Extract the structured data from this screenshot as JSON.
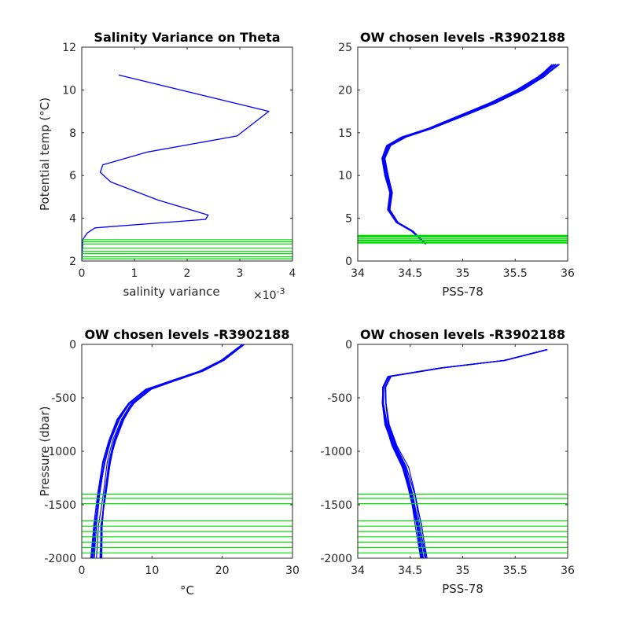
{
  "chart_data": [
    {
      "type": "line",
      "title": "Salinity Variance on Theta",
      "xlabel": "salinity variance",
      "x_exponent": "×10",
      "x_exponent_power": "-3",
      "ylabel": "Potential temp (°C)",
      "xlim": [
        0,
        4
      ],
      "ylim": [
        2,
        12
      ],
      "xticks": [
        0,
        1,
        2,
        3,
        4
      ],
      "yticks": [
        2,
        4,
        6,
        8,
        10,
        12
      ],
      "series": [
        {
          "color": "#0000ff",
          "x": [
            0.7,
            3.55,
            2.95,
            1.25,
            0.4,
            0.35,
            0.55,
            1.45,
            2.4,
            2.35,
            0.25,
            0.1,
            0.02,
            0.01,
            0.0
          ],
          "y": [
            10.7,
            9.0,
            7.85,
            7.1,
            6.5,
            6.15,
            5.7,
            4.85,
            4.15,
            3.95,
            3.55,
            3.3,
            3.0,
            2.5,
            2.0
          ]
        }
      ],
      "reference_lines": {
        "color": "#00dd00",
        "y": [
          2.1,
          2.2,
          2.35,
          2.45,
          2.6,
          2.8,
          2.9,
          3.0
        ]
      }
    },
    {
      "type": "line",
      "title": "OW chosen levels -R3902188",
      "xlabel": "PSS-78",
      "ylabel": "",
      "xlim": [
        34,
        36
      ],
      "ylim": [
        0,
        25
      ],
      "xticks": [
        34,
        34.5,
        35,
        35.5,
        36
      ],
      "yticks": [
        0,
        5,
        10,
        15,
        20,
        25
      ],
      "series": [
        {
          "color": "#0000ff",
          "x": [
            34.65,
            34.52,
            34.38,
            34.3,
            34.32,
            34.28,
            34.25,
            34.3,
            34.45,
            34.7,
            35.0,
            35.3,
            35.55,
            35.75,
            35.9
          ],
          "y": [
            2.0,
            3.5,
            4.5,
            6.0,
            8.0,
            10.0,
            12.0,
            13.5,
            14.5,
            15.5,
            17.0,
            18.5,
            20.0,
            21.5,
            23.0
          ]
        }
      ],
      "reference_lines": {
        "color": "#00dd00",
        "y": [
          2.1,
          2.2,
          2.35,
          2.45,
          2.6,
          2.8,
          2.9,
          3.0
        ]
      }
    },
    {
      "type": "line",
      "title": "OW chosen levels -R3902188",
      "xlabel": "°C",
      "ylabel": "Pressure (dbar)",
      "xlim": [
        0,
        30
      ],
      "ylim": [
        -2000,
        0
      ],
      "xticks": [
        0,
        10,
        20,
        30
      ],
      "yticks": [
        -2000,
        -1500,
        -1000,
        -500,
        0
      ],
      "series": [
        {
          "color": "#0000ff",
          "x": [
            2.0,
            2.3,
            2.8,
            3.5,
            4.3,
            5.5,
            7.0,
            9.5,
            13.0,
            17.0,
            20.0,
            23.0
          ],
          "y": [
            -2000,
            -1700,
            -1400,
            -1100,
            -900,
            -700,
            -550,
            -420,
            -340,
            -250,
            -150,
            0
          ]
        }
      ],
      "reference_lines": {
        "color": "#00dd00",
        "y": [
          -1400,
          -1440,
          -1490,
          -1650,
          -1700,
          -1750,
          -1800,
          -1850,
          -1900,
          -1950
        ]
      }
    },
    {
      "type": "line",
      "title": "OW chosen levels -R3902188",
      "xlabel": "PSS-78",
      "ylabel": "",
      "xlim": [
        34,
        36
      ],
      "ylim": [
        -2000,
        0
      ],
      "xticks": [
        34,
        34.5,
        35,
        35.5,
        36
      ],
      "yticks": [
        -2000,
        -1500,
        -1000,
        -500,
        0
      ],
      "series": [
        {
          "color": "#0000ff",
          "x": [
            34.63,
            34.58,
            34.52,
            34.45,
            34.35,
            34.28,
            34.25,
            34.25,
            34.3,
            34.8,
            35.4,
            35.8
          ],
          "y": [
            -2000,
            -1700,
            -1400,
            -1150,
            -950,
            -750,
            -550,
            -400,
            -300,
            -220,
            -150,
            -50
          ]
        }
      ],
      "reference_lines": {
        "color": "#00dd00",
        "y": [
          -1400,
          -1440,
          -1490,
          -1650,
          -1700,
          -1750,
          -1800,
          -1850,
          -1900,
          -1950
        ]
      }
    }
  ]
}
